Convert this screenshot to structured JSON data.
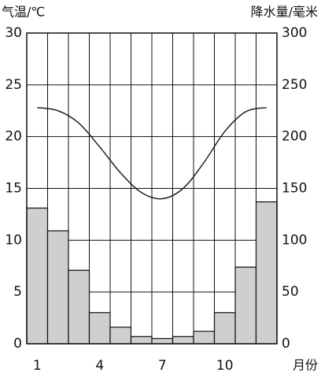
{
  "chart_data": {
    "type": "climate",
    "y_label": "气温/℃",
    "y2_label": "降水量/毫米",
    "x_label": "月份",
    "categories": [
      "1",
      null,
      null,
      "4",
      null,
      null,
      "7",
      null,
      null,
      "10",
      null,
      null
    ],
    "series": [
      {
        "name": "气温",
        "type": "line",
        "color": "#222222",
        "values": [
          22.8,
          22.5,
          21.3,
          19.0,
          16.5,
          14.6,
          14.0,
          15.0,
          17.5,
          20.5,
          22.4,
          22.8
        ]
      },
      {
        "name": "降水量",
        "type": "bar",
        "axis": "y2",
        "color": "#cfcfcf",
        "values": [
          131,
          109,
          71,
          30,
          16,
          7,
          5,
          7,
          12,
          30,
          74,
          137
        ]
      }
    ],
    "ylim": [
      0,
      30
    ],
    "yticks": [
      0,
      5,
      10,
      15,
      20,
      25,
      30
    ],
    "y2lim": [
      0,
      300
    ],
    "y2ticks": [
      0,
      50,
      100,
      150,
      200,
      250,
      300
    ],
    "grid": true
  }
}
